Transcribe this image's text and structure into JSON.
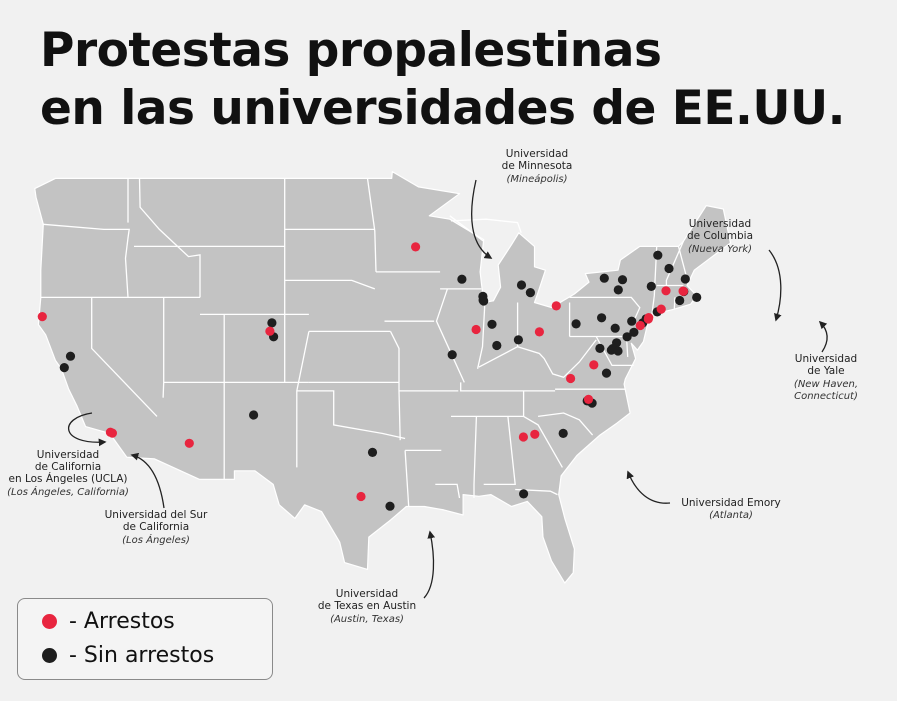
{
  "title": {
    "line1": "Protestas propalestinas",
    "line2": "en las universidades de EE.UU."
  },
  "colors": {
    "arrest": "#e8253f",
    "no_arrest": "#1e1e1e",
    "land": "#c3c3c3",
    "border": "#ffffff",
    "background": "#f1f1f1"
  },
  "callouts": [
    {
      "id": "minnesota",
      "lines": [
        "Universidad",
        "de Minnesota"
      ],
      "place": "(Mineápolis)"
    },
    {
      "id": "columbia",
      "lines": [
        "Universidad",
        "de Columbia"
      ],
      "place": "(Nueva York)"
    },
    {
      "id": "yale",
      "lines": [
        "Universidad",
        "de Yale"
      ],
      "place": [
        "(New Haven,",
        "Connecticut)"
      ]
    },
    {
      "id": "ucla",
      "lines": [
        "Universidad",
        "de California",
        "en Los Ángeles (UCLA)"
      ],
      "place": "(Los Ángeles, California)"
    },
    {
      "id": "usc",
      "lines": [
        "Universidad del Sur",
        "de California"
      ],
      "place": "(Los Ángeles)"
    },
    {
      "id": "emory",
      "lines": [
        "Universidad Emory"
      ],
      "place": "(Atlanta)"
    },
    {
      "id": "texas",
      "lines": [
        "Universidad",
        "de Texas en Austin"
      ],
      "place": "(Austin, Texas)"
    }
  ],
  "legend": {
    "arrests": "- Arrestos",
    "no_arrests": "- Sin arrestos"
  },
  "markers_arrest": [
    {
      "lat": 40.87,
      "lon": -124.08
    },
    {
      "lat": 34.07,
      "lon": -118.45
    },
    {
      "lat": 34.02,
      "lon": -118.29
    },
    {
      "lat": 33.42,
      "lon": -111.93
    },
    {
      "lat": 40.01,
      "lon": -105.27
    },
    {
      "lat": 30.29,
      "lon": -97.74
    },
    {
      "lat": 44.97,
      "lon": -93.23
    },
    {
      "lat": 40.11,
      "lon": -88.23
    },
    {
      "lat": 39.97,
      "lon": -83.0
    },
    {
      "lat": 41.5,
      "lon": -81.6
    },
    {
      "lat": 33.79,
      "lon": -84.32
    },
    {
      "lat": 33.95,
      "lon": -83.38
    },
    {
      "lat": 38.03,
      "lon": -78.5
    },
    {
      "lat": 37.23,
      "lon": -80.42
    },
    {
      "lat": 36.0,
      "lon": -78.94
    },
    {
      "lat": 40.81,
      "lon": -73.96
    },
    {
      "lat": 40.73,
      "lon": -74.0
    },
    {
      "lat": 41.31,
      "lon": -72.93
    },
    {
      "lat": 42.36,
      "lon": -71.09
    },
    {
      "lat": 42.37,
      "lon": -71.12
    },
    {
      "lat": 42.39,
      "lon": -72.53
    },
    {
      "lat": 40.35,
      "lon": -74.66
    }
  ],
  "markers_no_arrest": [
    {
      "lat": 38.54,
      "lon": -121.75
    },
    {
      "lat": 37.87,
      "lon": -122.26
    },
    {
      "lat": 40.5,
      "lon": -105.1
    },
    {
      "lat": 39.68,
      "lon": -104.96
    },
    {
      "lat": 35.08,
      "lon": -106.62
    },
    {
      "lat": 32.88,
      "lon": -96.79
    },
    {
      "lat": 29.72,
      "lon": -95.34
    },
    {
      "lat": 38.63,
      "lon": -90.2
    },
    {
      "lat": 41.79,
      "lon": -87.6
    },
    {
      "lat": 42.06,
      "lon": -87.67
    },
    {
      "lat": 43.07,
      "lon": -89.4
    },
    {
      "lat": 41.85,
      "lon": -87.65
    },
    {
      "lat": 39.17,
      "lon": -86.52
    },
    {
      "lat": 40.42,
      "lon": -86.91
    },
    {
      "lat": 42.28,
      "lon": -83.74
    },
    {
      "lat": 42.73,
      "lon": -84.48
    },
    {
      "lat": 39.5,
      "lon": -84.73
    },
    {
      "lat": 40.44,
      "lon": -79.96
    },
    {
      "lat": 40.8,
      "lon": -77.86
    },
    {
      "lat": 39.95,
      "lon": -75.19
    },
    {
      "lat": 39.33,
      "lon": -76.62
    },
    {
      "lat": 38.9,
      "lon": -77.05
    },
    {
      "lat": 38.99,
      "lon": -76.94
    },
    {
      "lat": 37.55,
      "lon": -77.45
    },
    {
      "lat": 35.91,
      "lon": -79.05
    },
    {
      "lat": 35.78,
      "lon": -78.64
    },
    {
      "lat": 34.0,
      "lon": -81.03
    },
    {
      "lat": 30.44,
      "lon": -84.3
    },
    {
      "lat": 43.04,
      "lon": -76.13
    },
    {
      "lat": 42.44,
      "lon": -76.48
    },
    {
      "lat": 43.13,
      "lon": -77.63
    },
    {
      "lat": 44.48,
      "lon": -73.21
    },
    {
      "lat": 43.7,
      "lon": -72.29
    },
    {
      "lat": 42.65,
      "lon": -73.75
    },
    {
      "lat": 41.82,
      "lon": -71.4
    },
    {
      "lat": 42.35,
      "lon": -71.06
    },
    {
      "lat": 40.74,
      "lon": -74.17
    },
    {
      "lat": 40.5,
      "lon": -74.45
    },
    {
      "lat": 40.6,
      "lon": -75.37
    },
    {
      "lat": 39.68,
      "lon": -75.75
    },
    {
      "lat": 40.19,
      "lon": -76.73
    },
    {
      "lat": 41.15,
      "lon": -73.26
    },
    {
      "lat": 43.08,
      "lon": -70.94
    },
    {
      "lat": 42.0,
      "lon": -70.0
    },
    {
      "lat": 38.85,
      "lon": -76.5
    },
    {
      "lat": 39.0,
      "lon": -78.0
    }
  ]
}
